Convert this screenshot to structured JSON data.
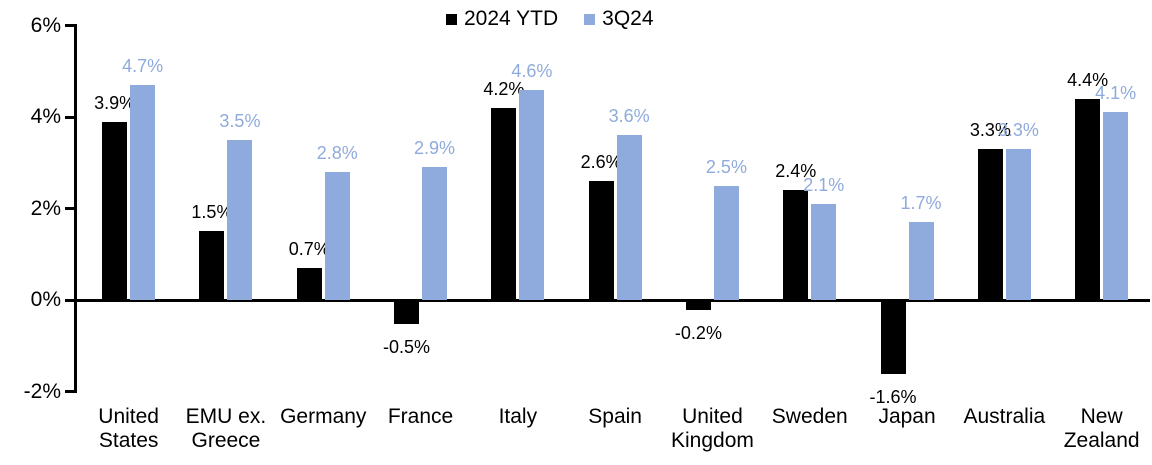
{
  "chart_data": {
    "type": "bar",
    "title": "",
    "xlabel": "",
    "ylabel": "",
    "grid": "off",
    "legend_position": "top-center",
    "categories": [
      "United\nStates",
      "EMU ex.\nGreece",
      "Germany",
      "France",
      "Italy",
      "Spain",
      "United\nKingdom",
      "Sweden",
      "Japan",
      "Australia",
      "New\nZealand"
    ],
    "series": [
      {
        "name": "2024 YTD",
        "color": "#000000",
        "values": [
          3.9,
          1.5,
          0.7,
          -0.5,
          4.2,
          2.6,
          -0.2,
          2.4,
          -1.6,
          3.3,
          4.4
        ],
        "labels": [
          "3.9%",
          "1.5%",
          "0.7%",
          "-0.5%",
          "4.2%",
          "2.6%",
          "-0.2%",
          "2.4%",
          "-1.6%",
          "3.3%",
          "4.4%"
        ]
      },
      {
        "name": "3Q24",
        "color": "#8FAADC",
        "values": [
          4.7,
          3.5,
          2.8,
          2.9,
          4.6,
          3.6,
          2.5,
          2.1,
          1.7,
          3.3,
          4.1
        ],
        "labels": [
          "4.7%",
          "3.5%",
          "2.8%",
          "2.9%",
          "4.6%",
          "3.6%",
          "2.5%",
          "2.1%",
          "1.7%",
          "3.3%",
          "4.1%"
        ]
      }
    ],
    "y_axis": {
      "ylim": [
        -2,
        6
      ],
      "ticks": [
        {
          "label": "6%",
          "value": 6
        },
        {
          "label": "4%",
          "value": 4
        },
        {
          "label": "2%",
          "value": 2
        },
        {
          "label": "0%",
          "value": 0
        },
        {
          "label": "-2%",
          "value": -2
        }
      ]
    }
  }
}
